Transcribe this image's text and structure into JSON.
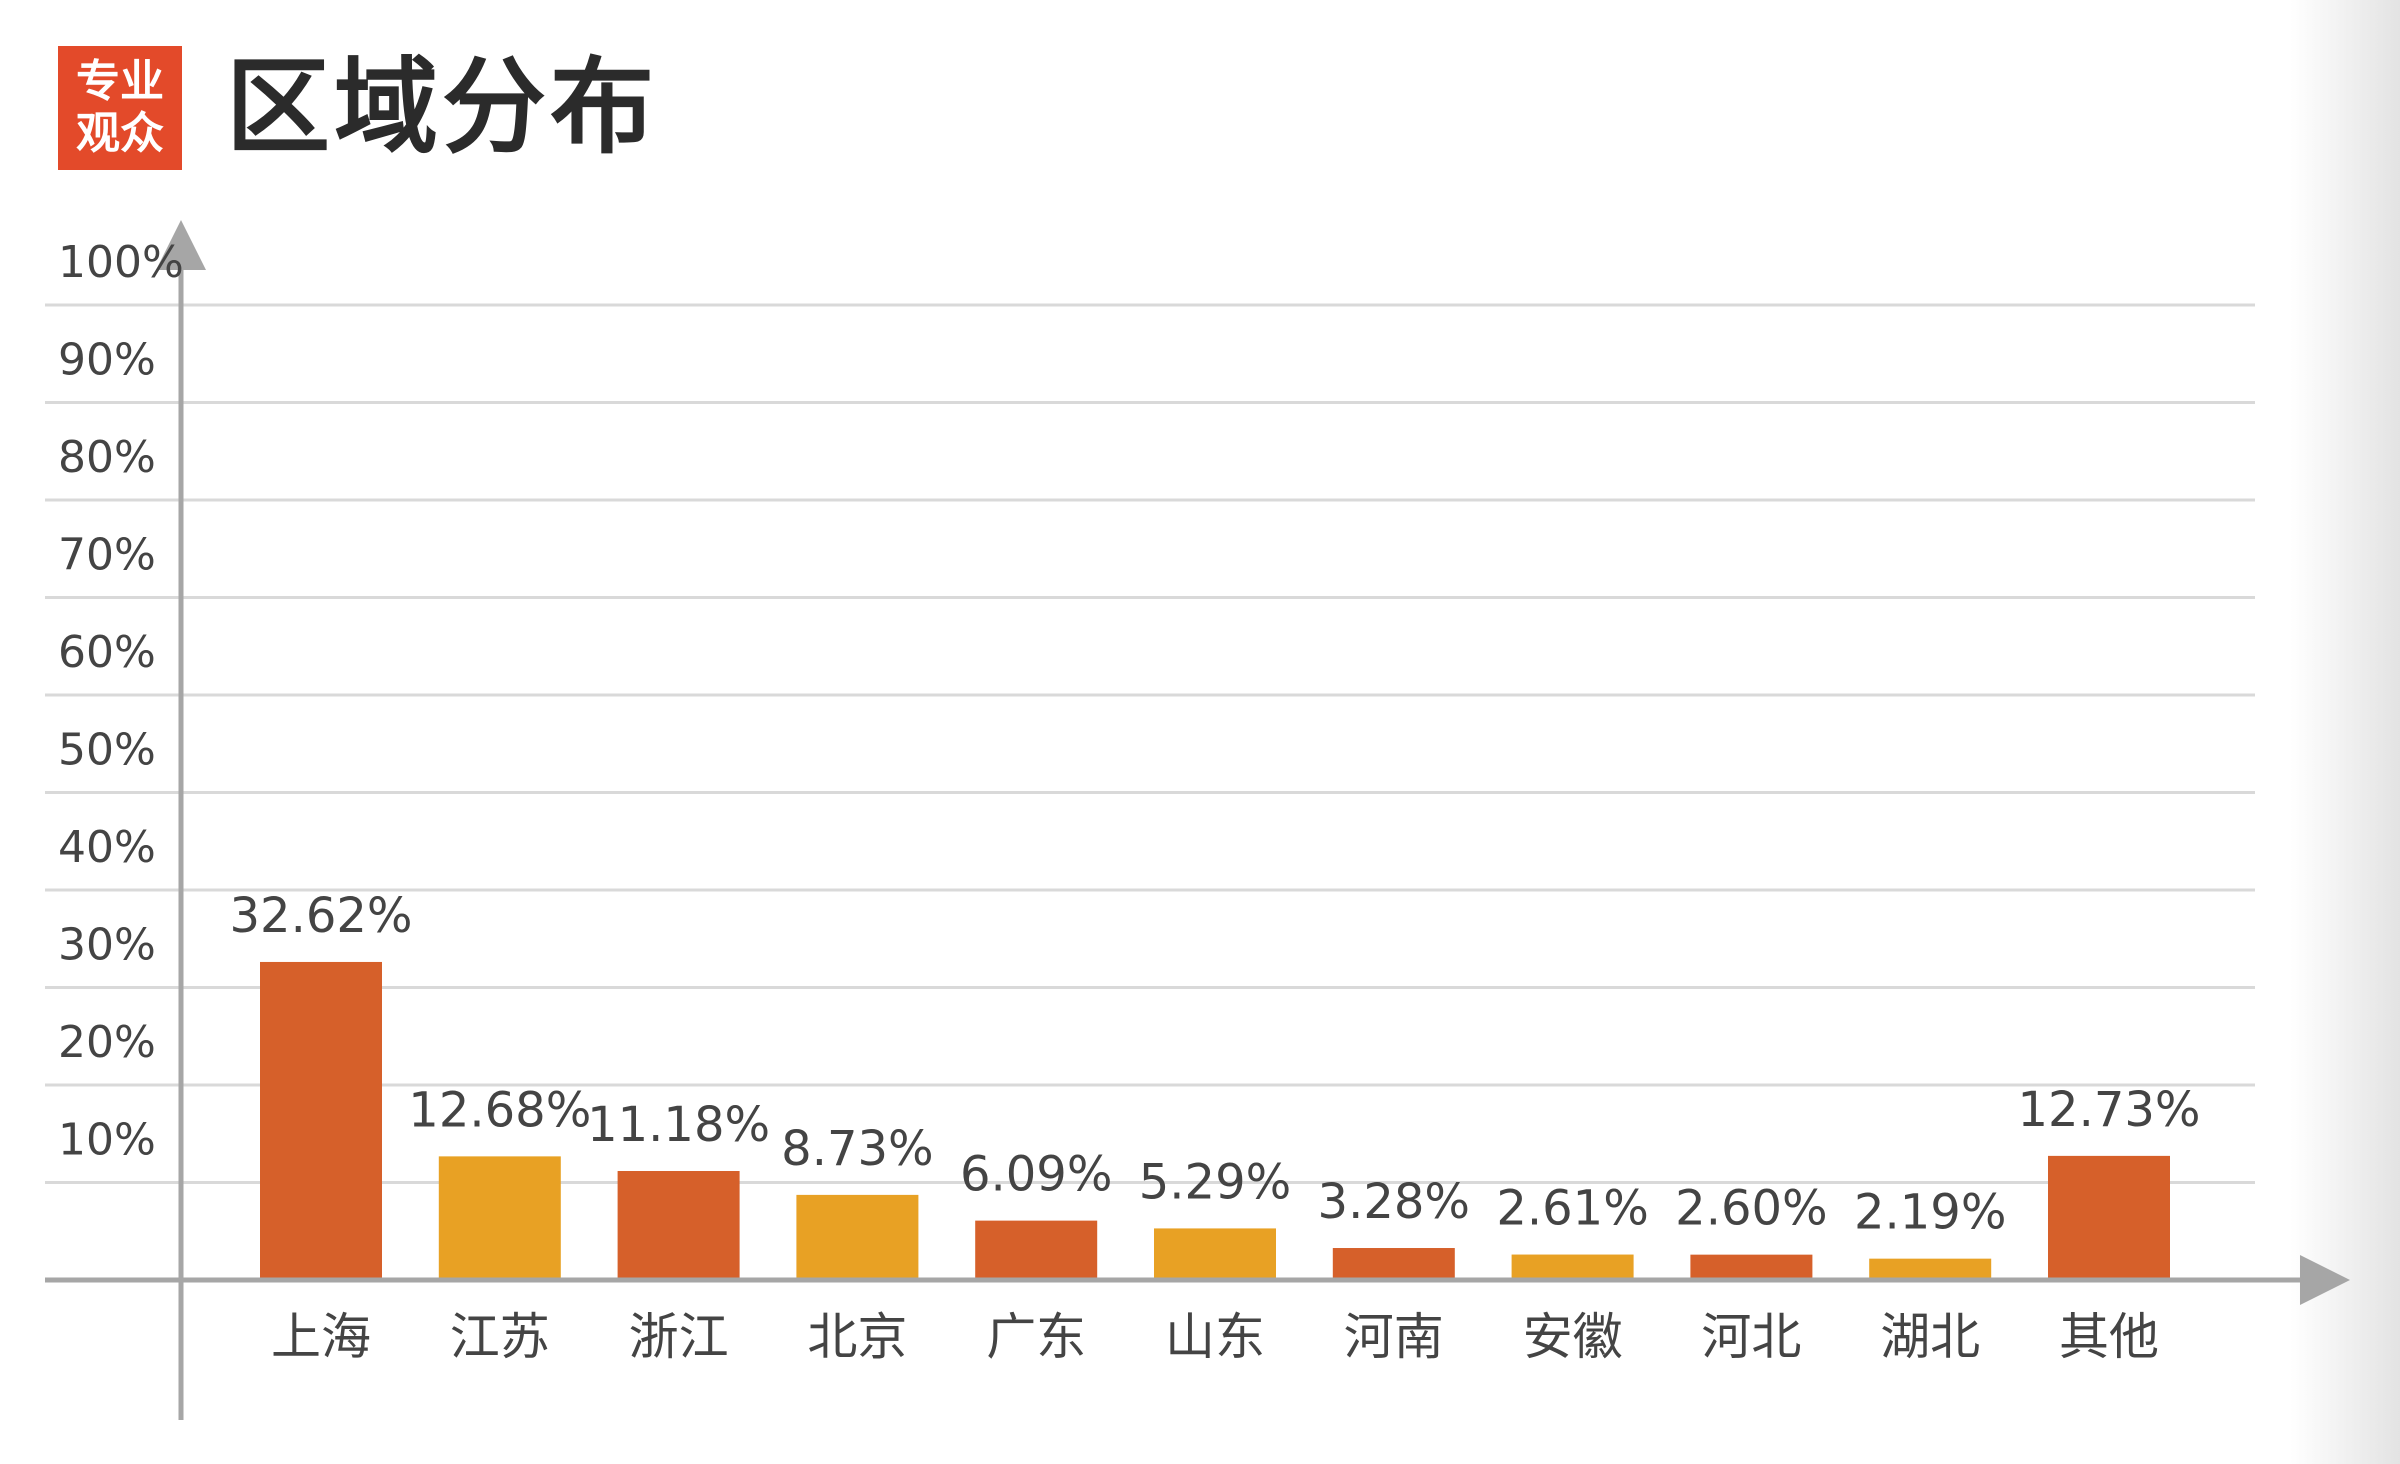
{
  "badge": {
    "line1": "专业",
    "line2": "观众"
  },
  "title": "区域分布",
  "colors": {
    "badge_bg": "#e34a2a",
    "bar_primary": "#d6602a",
    "bar_secondary": "#e8a124",
    "grid": "#d9d9d9",
    "axis": "#a6a6a6",
    "text": "#444444"
  },
  "chart_data": {
    "type": "bar",
    "categories": [
      "上海",
      "江苏",
      "浙江",
      "北京",
      "广东",
      "山东",
      "河南",
      "安徽",
      "河北",
      "湖北",
      "其他"
    ],
    "values": [
      32.62,
      12.68,
      11.18,
      8.73,
      6.09,
      5.29,
      3.28,
      2.61,
      2.6,
      2.19,
      12.73
    ],
    "value_labels": [
      "32.62%",
      "12.68%",
      "11.18%",
      "8.73%",
      "6.09%",
      "5.29%",
      "3.28%",
      "2.61%",
      "2.60%",
      "2.19%",
      "12.73%"
    ],
    "bar_color_pattern": [
      "primary",
      "secondary",
      "primary",
      "secondary",
      "primary",
      "secondary",
      "primary",
      "secondary",
      "primary",
      "secondary",
      "primary"
    ],
    "title": "区域分布",
    "xlabel": "",
    "ylabel": "",
    "y_ticks": [
      "10%",
      "20%",
      "30%",
      "40%",
      "50%",
      "60%",
      "70%",
      "80%",
      "90%",
      "100%"
    ],
    "ylim": [
      0,
      100
    ],
    "grid": true,
    "legend": "none"
  }
}
